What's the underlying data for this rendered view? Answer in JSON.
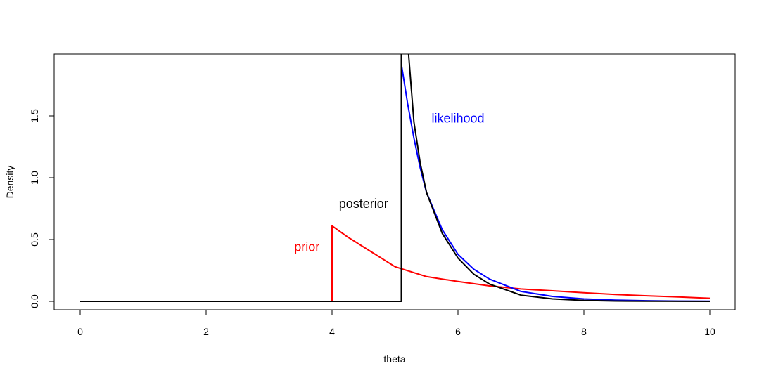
{
  "chart_data": {
    "type": "line",
    "title": "",
    "xlabel": "theta",
    "ylabel": "Density",
    "xlim": [
      0,
      10
    ],
    "ylim": [
      0,
      1.95
    ],
    "grid": false,
    "legend": "none",
    "x_ticks": [
      0,
      2,
      4,
      6,
      8,
      10
    ],
    "x_tick_labels": [
      "0",
      "2",
      "4",
      "6",
      "8",
      "10"
    ],
    "y_ticks": [
      0,
      0.5,
      1,
      1.5
    ],
    "y_tick_labels": [
      "0.0",
      "0.5",
      "1.0",
      "1.5"
    ],
    "series": [
      {
        "color": "#ff0000",
        "x": [
          0,
          4.0,
          4.0,
          4.25,
          4.5,
          4.75,
          5.0,
          5.5,
          6.0,
          6.5,
          7.0,
          7.5,
          8.0,
          8.5,
          9.0,
          9.5,
          10.0
        ],
        "y": [
          0,
          0,
          0.61,
          0.52,
          0.44,
          0.36,
          0.28,
          0.2,
          0.16,
          0.125,
          0.1,
          0.085,
          0.07,
          0.055,
          0.045,
          0.035,
          0.025
        ]
      },
      {
        "color": "#0000ff",
        "x": [
          5.1,
          5.1,
          5.2,
          5.3,
          5.4,
          5.5,
          5.75,
          6.0,
          6.25,
          6.5,
          7.0,
          7.5,
          8.0,
          8.5,
          9.0,
          9.5,
          10.0
        ],
        "y": [
          0.95,
          1.92,
          1.6,
          1.32,
          1.08,
          0.88,
          0.58,
          0.38,
          0.26,
          0.18,
          0.08,
          0.04,
          0.02,
          0.01,
          0.005,
          0.002,
          0.001
        ]
      },
      {
        "color": "#000000",
        "x": [
          0,
          5.1,
          5.1,
          5.2,
          5.3,
          5.4,
          5.5,
          5.75,
          6.0,
          6.25,
          6.5,
          7.0,
          7.5,
          8.0,
          8.5,
          9.0,
          10.0
        ],
        "y": [
          0,
          0,
          2.1,
          2.1,
          1.45,
          1.12,
          0.88,
          0.55,
          0.35,
          0.22,
          0.14,
          0.05,
          0.02,
          0.008,
          0.003,
          0.001,
          0
        ]
      }
    ],
    "annotations": [
      {
        "text": "prior",
        "x": 3.6,
        "y": 0.44,
        "color": "#ff0000"
      },
      {
        "text": "likelihood",
        "x": 6.0,
        "y": 1.48,
        "color": "#0000ff"
      },
      {
        "text": "posterior",
        "x": 4.5,
        "y": 0.79,
        "color": "#000000"
      }
    ]
  }
}
